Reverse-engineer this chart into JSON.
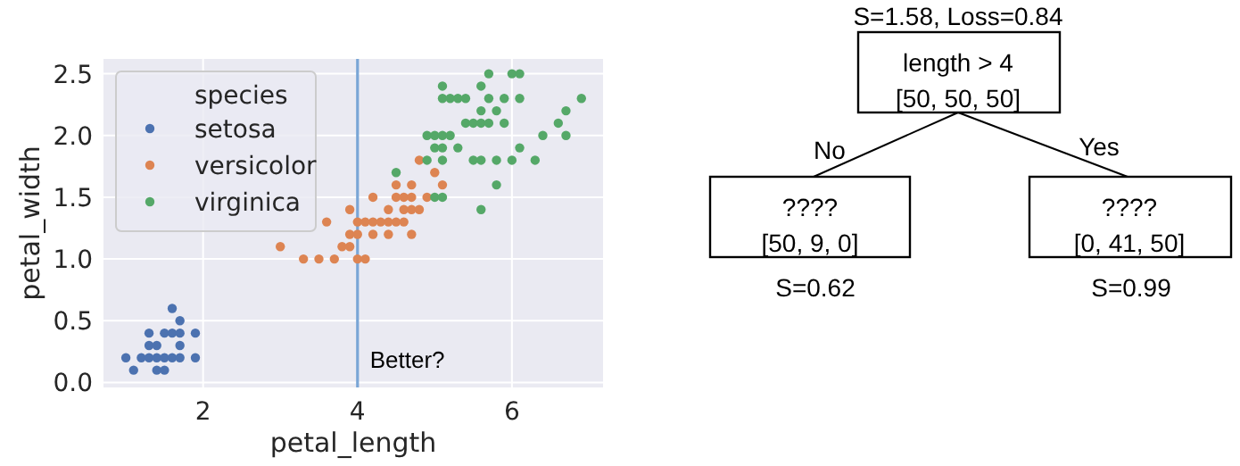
{
  "chart_data": [
    {
      "type": "scatter",
      "xlabel": "petal_length",
      "ylabel": "petal_width",
      "legend_title": "species",
      "legend": "top left",
      "grid": true,
      "marker": "circle",
      "xlim": [
        0.71,
        7.18
      ],
      "ylim": [
        -0.04,
        2.62
      ],
      "xticks": [
        2,
        4,
        6
      ],
      "yticks": [
        {
          "value": 0,
          "label": "0.0"
        },
        {
          "value": 0.5,
          "label": "0.5"
        },
        {
          "value": 1,
          "label": "1.0"
        },
        {
          "value": 1.5,
          "label": "1.5"
        },
        {
          "value": 2,
          "label": "2.0"
        },
        {
          "value": 2.5,
          "label": "2.5"
        }
      ],
      "ref_lines": [
        {
          "axis": "x",
          "value": 4,
          "label": "Better?",
          "color": "#7aa6d6"
        }
      ],
      "series": [
        {
          "name": "setosa",
          "color": "#4c72b0",
          "x": [
            1.0,
            1.2,
            1.3,
            1.4,
            1.5,
            1.6,
            1.7,
            1.9,
            1.1,
            1.4,
            1.5,
            1.3,
            1.4,
            1.7,
            1.3,
            1.5,
            1.6,
            1.7,
            1.9,
            1.7,
            1.6
          ],
          "values": [
            0.2,
            0.2,
            0.2,
            0.2,
            0.2,
            0.2,
            0.2,
            0.2,
            0.1,
            0.1,
            0.1,
            0.3,
            0.3,
            0.3,
            0.4,
            0.4,
            0.4,
            0.4,
            0.4,
            0.5,
            0.6
          ]
        },
        {
          "name": "versicolor",
          "color": "#dd8452",
          "x": [
            3.3,
            3.5,
            3.7,
            4.0,
            4.1,
            3.0,
            3.8,
            3.9,
            3.9,
            4.0,
            4.2,
            4.4,
            4.7,
            3.6,
            4.0,
            4.1,
            4.2,
            4.3,
            4.4,
            4.5,
            4.6,
            3.9,
            4.4,
            4.6,
            4.7,
            4.8,
            4.2,
            4.5,
            4.6,
            4.7,
            4.9,
            4.5,
            4.7,
            5.1,
            5.0,
            4.8
          ],
          "values": [
            1.0,
            1.0,
            1.0,
            1.0,
            1.0,
            1.1,
            1.1,
            1.1,
            1.2,
            1.2,
            1.2,
            1.2,
            1.2,
            1.3,
            1.3,
            1.3,
            1.3,
            1.3,
            1.3,
            1.3,
            1.3,
            1.4,
            1.4,
            1.4,
            1.4,
            1.4,
            1.5,
            1.5,
            1.5,
            1.5,
            1.5,
            1.6,
            1.6,
            1.6,
            1.7,
            1.8
          ]
        },
        {
          "name": "virginica",
          "color": "#55a868",
          "x": [
            5.6,
            5.8,
            5.0,
            5.1,
            4.5,
            4.9,
            5.1,
            5.5,
            5.6,
            5.8,
            6.0,
            6.3,
            5.0,
            5.1,
            5.3,
            6.1,
            4.9,
            5.0,
            5.1,
            5.2,
            6.4,
            6.7,
            5.4,
            5.5,
            5.6,
            5.7,
            5.9,
            6.6,
            5.6,
            5.8,
            6.7,
            5.1,
            5.2,
            5.3,
            5.4,
            5.7,
            5.9,
            6.1,
            6.9,
            5.1,
            5.6,
            5.7,
            6.0,
            6.1
          ],
          "values": [
            1.4,
            1.6,
            1.5,
            1.5,
            1.7,
            1.8,
            1.8,
            1.8,
            1.8,
            1.8,
            1.8,
            1.8,
            1.9,
            1.9,
            1.9,
            1.9,
            2.0,
            2.0,
            2.0,
            2.0,
            2.0,
            2.0,
            2.1,
            2.1,
            2.1,
            2.1,
            2.1,
            2.1,
            2.2,
            2.2,
            2.2,
            2.3,
            2.3,
            2.3,
            2.3,
            2.3,
            2.3,
            2.3,
            2.3,
            2.4,
            2.4,
            2.5,
            2.5,
            2.5
          ]
        }
      ]
    },
    {
      "type": "other",
      "annotations": [
        "S=1.58, Loss=0.84",
        "length > 4",
        "[50, 50, 50]",
        "No",
        "Yes",
        "????",
        "[50, 9, 0]",
        "S=0.62",
        "????",
        "[0, 41, 50]",
        "S=0.99"
      ]
    }
  ]
}
